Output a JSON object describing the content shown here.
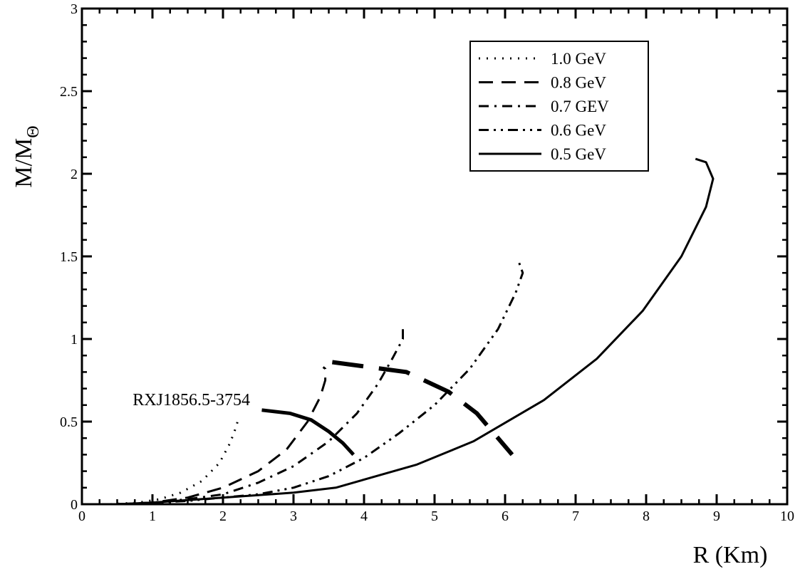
{
  "chart_data": {
    "type": "line",
    "title": "",
    "xlabel": "R (Km)",
    "ylabel_main": "M/M",
    "ylabel_sub": "Θ",
    "xlim": [
      0,
      10
    ],
    "ylim": [
      0,
      3
    ],
    "x_ticks": [
      0,
      1,
      2,
      3,
      4,
      5,
      6,
      7,
      8,
      9,
      10
    ],
    "x_tick_labels": [
      "0",
      "1",
      "2",
      "3",
      "4",
      "5",
      "6",
      "7",
      "8",
      "9",
      "10"
    ],
    "y_ticks": [
      0,
      0.5,
      1,
      1.5,
      2,
      2.5,
      3
    ],
    "y_tick_labels": [
      "0",
      "0.5",
      "1",
      "1.5",
      "2",
      "2.5",
      "3"
    ],
    "grid": false,
    "legend_position": "top-right",
    "series": [
      {
        "name": "1.0 GeV",
        "style": "dotted",
        "points": [
          [
            0.4,
            0.0
          ],
          [
            0.8,
            0.01
          ],
          [
            1.1,
            0.03
          ],
          [
            1.4,
            0.07
          ],
          [
            1.7,
            0.14
          ],
          [
            1.95,
            0.25
          ],
          [
            2.1,
            0.37
          ],
          [
            2.18,
            0.46
          ],
          [
            2.22,
            0.52
          ],
          [
            2.2,
            0.53
          ]
        ]
      },
      {
        "name": "0.8 GeV",
        "style": "dashed",
        "points": [
          [
            0.5,
            0.0
          ],
          [
            1.0,
            0.01
          ],
          [
            1.5,
            0.04
          ],
          [
            2.0,
            0.1
          ],
          [
            2.5,
            0.2
          ],
          [
            2.9,
            0.33
          ],
          [
            3.2,
            0.5
          ],
          [
            3.38,
            0.65
          ],
          [
            3.45,
            0.75
          ],
          [
            3.45,
            0.82
          ],
          [
            3.42,
            0.83
          ]
        ]
      },
      {
        "name": "0.7 GEV",
        "style": "dash-dot",
        "points": [
          [
            0.5,
            0.0
          ],
          [
            1.0,
            0.01
          ],
          [
            1.5,
            0.03
          ],
          [
            2.0,
            0.06
          ],
          [
            2.5,
            0.13
          ],
          [
            3.0,
            0.23
          ],
          [
            3.5,
            0.38
          ],
          [
            3.9,
            0.55
          ],
          [
            4.2,
            0.73
          ],
          [
            4.4,
            0.88
          ],
          [
            4.55,
            1.0
          ],
          [
            4.55,
            1.06
          ],
          [
            4.5,
            1.07
          ]
        ]
      },
      {
        "name": "0.6 GeV",
        "style": "dash-dot-dot",
        "points": [
          [
            0.5,
            0.0
          ],
          [
            1.0,
            0.01
          ],
          [
            1.5,
            0.02
          ],
          [
            2.0,
            0.04
          ],
          [
            2.5,
            0.06
          ],
          [
            3.0,
            0.1
          ],
          [
            3.5,
            0.17
          ],
          [
            4.0,
            0.28
          ],
          [
            4.5,
            0.43
          ],
          [
            5.0,
            0.6
          ],
          [
            5.5,
            0.82
          ],
          [
            5.9,
            1.06
          ],
          [
            6.15,
            1.28
          ],
          [
            6.25,
            1.4
          ],
          [
            6.2,
            1.46
          ]
        ]
      },
      {
        "name": "0.5 GeV",
        "style": "solid",
        "points": [
          [
            0.5,
            0.0
          ],
          [
            1.0,
            0.01
          ],
          [
            2.0,
            0.04
          ],
          [
            3.0,
            0.07
          ],
          [
            3.6,
            0.1
          ],
          [
            4.75,
            0.24
          ],
          [
            5.55,
            0.38
          ],
          [
            6.55,
            0.63
          ],
          [
            7.3,
            0.88
          ],
          [
            7.95,
            1.17
          ],
          [
            8.5,
            1.5
          ],
          [
            8.85,
            1.8
          ],
          [
            8.95,
            1.97
          ],
          [
            8.85,
            2.07
          ],
          [
            8.7,
            2.09
          ]
        ]
      }
    ],
    "annotation": {
      "label": "RXJ1856.5-3754",
      "thin_curve_points": [
        [
          2.55,
          0.57
        ],
        [
          2.95,
          0.55
        ],
        [
          3.25,
          0.51
        ],
        [
          3.5,
          0.44
        ],
        [
          3.7,
          0.37
        ],
        [
          3.85,
          0.3
        ]
      ],
      "thick_dashed_points": [
        [
          3.55,
          0.86
        ],
        [
          4.6,
          0.8
        ],
        [
          5.2,
          0.68
        ],
        [
          5.6,
          0.55
        ],
        [
          6.1,
          0.3
        ]
      ],
      "label_at": [
        0.72,
        0.6
      ]
    }
  }
}
